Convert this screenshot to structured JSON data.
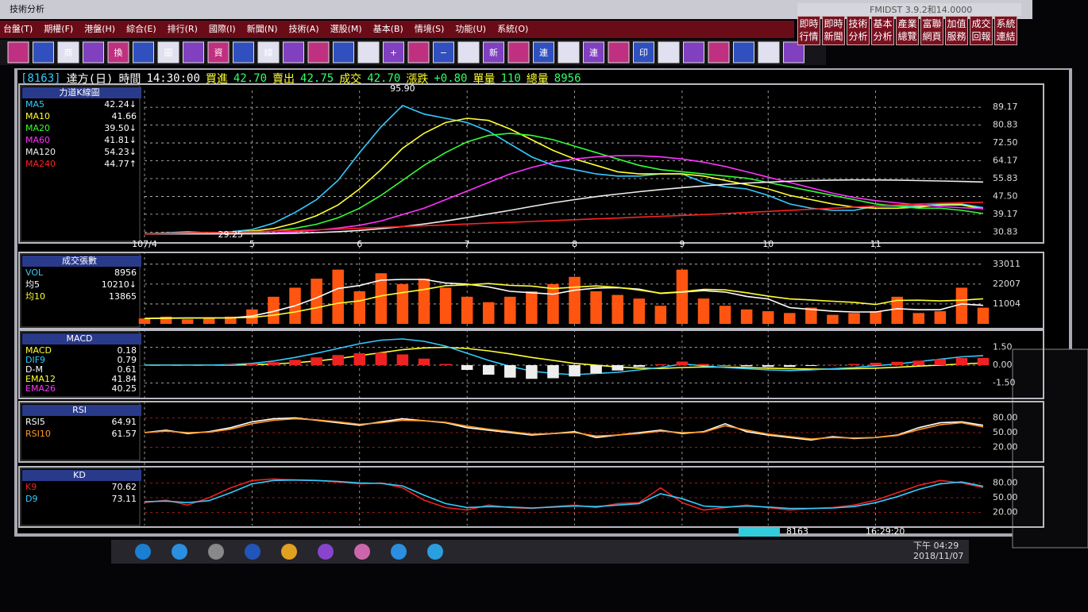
{
  "window": {
    "title": "技術分析",
    "app_title": "FMIDST 3.9.2和14.0000"
  },
  "menu": [
    "台盤(T)",
    "期權(F)",
    "港盤(H)",
    "綜合(E)",
    "排行(R)",
    "國際(I)",
    "新聞(N)",
    "技術(A)",
    "選股(M)",
    "基本(B)",
    "情境(S)",
    "功能(U)",
    "系統(O)"
  ],
  "side_buttons": [
    "即時行情",
    "即時新聞",
    "技術分析",
    "基本分析",
    "產業總覽",
    "富聯網頁",
    "加值服務",
    "成交回報",
    "系統連結"
  ],
  "toolbar": [
    "商",
    "換",
    "圖",
    "資",
    "線",
    "+",
    "−",
    "新",
    "連",
    "連",
    "印"
  ],
  "quote": [
    {
      "text": "[8163]",
      "color": "#33ccff"
    },
    {
      "text": "達方(日)",
      "color": "#ffffff"
    },
    {
      "text": "時間",
      "color": "#ffffff"
    },
    {
      "text": "14:30:00",
      "color": "#ffffff"
    },
    {
      "text": "買進",
      "color": "#ffff33"
    },
    {
      "text": "42.70",
      "color": "#33ff66"
    },
    {
      "text": "賣出",
      "color": "#ffff33"
    },
    {
      "text": "42.75",
      "color": "#33ff66"
    },
    {
      "text": "成交",
      "color": "#ffff33"
    },
    {
      "text": "42.70",
      "color": "#33ff66"
    },
    {
      "text": "漲跌",
      "color": "#ffff33"
    },
    {
      "text": "+0.80",
      "color": "#33ff66"
    },
    {
      "text": "單量",
      "color": "#ffff33"
    },
    {
      "text": "110",
      "color": "#33ff66"
    },
    {
      "text": "總量",
      "color": "#ffff33"
    },
    {
      "text": "8956",
      "color": "#33ff66"
    }
  ],
  "chart_data": [
    {
      "type": "line",
      "title": "力道K線圖",
      "grid": true,
      "grid_color": "#cccccc",
      "categories": [
        "107/4",
        null,
        null,
        null,
        null,
        "5",
        null,
        null,
        null,
        null,
        "6",
        null,
        null,
        null,
        null,
        "7",
        null,
        null,
        null,
        null,
        "8",
        null,
        null,
        null,
        null,
        "9",
        null,
        null,
        null,
        "10",
        null,
        null,
        null,
        null,
        "11",
        null,
        null,
        null,
        null,
        null
      ],
      "ylim": [
        28,
        97
      ],
      "yticks": [
        89.17,
        80.83,
        {
          "value": 72.5,
          "label": "72.50"
        },
        64.17,
        55.83,
        {
          "value": 47.5,
          "label": "47.50"
        },
        39.17,
        30.83
      ],
      "annotations": [
        "95.90",
        "29.25"
      ],
      "series": [
        {
          "name": "MA5",
          "color": "#33ccff",
          "legend_label": "42.24↓",
          "values": [
            30,
            30.5,
            31,
            30.5,
            31,
            32,
            35,
            40,
            46,
            55,
            68,
            80,
            90,
            86,
            84,
            82,
            78,
            72,
            66,
            62,
            60,
            58,
            57,
            57,
            58,
            58,
            54,
            52,
            51,
            48,
            44,
            42,
            41,
            41,
            43,
            43,
            43,
            44,
            44,
            42.24
          ]
        },
        {
          "name": "MA10",
          "color": "#ffff33",
          "legend_label": "41.66",
          "values": [
            30,
            30.2,
            30.5,
            30.6,
            30.8,
            31.3,
            32.5,
            35,
            38.5,
            43.5,
            51,
            60,
            70,
            77,
            82,
            84,
            83,
            79,
            74,
            69,
            65,
            62,
            59,
            58,
            58,
            58,
            57,
            55,
            53,
            51,
            48,
            46,
            44,
            42.5,
            42,
            42,
            42.5,
            43.5,
            43.5,
            41.66
          ]
        },
        {
          "name": "MA20",
          "color": "#33ff33",
          "legend_label": "39.50↓",
          "values": [
            30,
            30,
            30,
            30.1,
            30.3,
            30.6,
            31.3,
            32.6,
            34.5,
            37.5,
            42,
            48,
            55,
            62,
            68,
            73,
            76,
            77,
            76,
            74,
            71,
            68,
            65,
            62,
            60,
            59,
            58,
            57,
            56,
            54,
            52,
            50,
            48,
            46,
            44,
            43,
            42,
            42,
            41,
            39.5
          ]
        },
        {
          "name": "MA60",
          "color": "#ff33ff",
          "legend_label": "41.81↓",
          "values": [
            30,
            30,
            30,
            30,
            30,
            30.2,
            30.5,
            31,
            31.7,
            32.7,
            34,
            36,
            39,
            42,
            46,
            50,
            54,
            58,
            61,
            63.5,
            65,
            66,
            66.5,
            66.5,
            66,
            65,
            63.5,
            61.5,
            59,
            56.5,
            54,
            51.5,
            49,
            47,
            45.5,
            44.5,
            43.5,
            42.8,
            42.2,
            41.81
          ]
        },
        {
          "name": "MA120",
          "color": "#eeeeee",
          "legend_label": "54.23↓",
          "values": [
            30,
            30,
            30,
            30,
            30,
            30,
            30.1,
            30.3,
            30.6,
            31,
            31.6,
            32.4,
            33.4,
            34.6,
            36,
            37.6,
            39.3,
            41,
            42.8,
            44.5,
            46,
            47.4,
            48.6,
            49.7,
            50.7,
            51.6,
            52.4,
            53.1,
            53.7,
            54.2,
            54.6,
            54.9,
            55.1,
            55.2,
            55.2,
            55.1,
            54.9,
            54.7,
            54.5,
            54.23
          ]
        },
        {
          "name": "MA240",
          "color": "#ff2222",
          "legend_label": "44.77↑",
          "values": [
            30,
            30.2,
            30.4,
            30.6,
            30.8,
            31,
            31.3,
            31.6,
            31.9,
            32.2,
            32.6,
            33,
            33.4,
            33.8,
            34.2,
            34.6,
            35,
            35.4,
            35.8,
            36.2,
            36.6,
            37,
            37.4,
            37.8,
            38.2,
            38.6,
            39,
            39.5,
            40,
            40.5,
            41,
            41.5,
            42,
            42.5,
            43,
            43.5,
            44,
            44.3,
            44.6,
            44.77
          ]
        }
      ]
    },
    {
      "type": "bar",
      "title": "成交張數",
      "grid": true,
      "grid_color": "#cccccc",
      "ylim": [
        0,
        36000
      ],
      "yticks": [
        33011,
        22007,
        11004
      ],
      "series": [
        {
          "name": "VOL",
          "type": "bar",
          "color": "#ff5511",
          "legend_color": "#33ccff",
          "legend_label": "8956",
          "values": [
            3000,
            4000,
            2500,
            3000,
            4000,
            8000,
            15000,
            20000,
            25000,
            30000,
            18000,
            28000,
            22000,
            25000,
            20000,
            15000,
            12000,
            15000,
            18000,
            22000,
            26000,
            18000,
            16000,
            14000,
            10000,
            30000,
            14000,
            10000,
            8000,
            7000,
            6000,
            9000,
            5000,
            6000,
            7000,
            15000,
            6000,
            7000,
            20000,
            8956
          ]
        },
        {
          "name": "均5",
          "color": "#ffffff",
          "legend_label": "10210↓",
          "values": [
            3000,
            3200,
            3300,
            3300,
            3300,
            4300,
            6900,
            10000,
            14400,
            19600,
            21200,
            24200,
            24600,
            24600,
            22600,
            22000,
            20400,
            18000,
            17200,
            16400,
            18600,
            19800,
            20000,
            19200,
            16800,
            17600,
            18400,
            17600,
            15200,
            13800,
            9000,
            8000,
            7000,
            6600,
            6600,
            8400,
            7800,
            7800,
            11000,
            10210
          ]
        },
        {
          "name": "均10",
          "color": "#ffff33",
          "legend_label": "13865",
          "values": [
            3000,
            3100,
            3200,
            3250,
            3300,
            3600,
            4800,
            6600,
            8900,
            11400,
            12700,
            15500,
            17300,
            19000,
            21100,
            21600,
            22300,
            21300,
            20900,
            19500,
            20300,
            21000,
            20200,
            18700,
            17000,
            17800,
            19100,
            18800,
            17200,
            15300,
            13800,
            13200,
            12500,
            11900,
            10700,
            13000,
            13100,
            12700,
            13100,
            13865
          ]
        }
      ]
    },
    {
      "type": "bar",
      "title": "MACD",
      "grid": true,
      "grid_color": "#cccccc",
      "ylim": [
        -2.4,
        2.4
      ],
      "yticks": [
        {
          "value": 1.5,
          "label": "1.50"
        },
        {
          "value": 0,
          "label": "0.00"
        },
        {
          "value": -1.5,
          "label": "-1.50"
        }
      ],
      "series": [
        {
          "name": "MACD",
          "color": "#ffff33",
          "legend_label": "0.18",
          "values": [
            0,
            0,
            0,
            0,
            0.01,
            0.04,
            0.1,
            0.2,
            0.35,
            0.55,
            0.8,
            1.05,
            1.3,
            1.45,
            1.5,
            1.4,
            1.2,
            0.95,
            0.65,
            0.4,
            0.15,
            0,
            -0.15,
            -0.25,
            -0.28,
            -0.2,
            -0.15,
            -0.16,
            -0.2,
            -0.25,
            -0.3,
            -0.33,
            -0.33,
            -0.3,
            -0.25,
            -0.18,
            -0.08,
            0,
            0.1,
            0.18
          ]
        },
        {
          "name": "DIF9",
          "color": "#33ccff",
          "legend_label": "0.79",
          "values": [
            0,
            0,
            0,
            0,
            0.05,
            0.15,
            0.35,
            0.65,
            1.0,
            1.4,
            1.8,
            2.1,
            2.2,
            2.0,
            1.6,
            1.0,
            0.4,
            -0.1,
            -0.5,
            -0.7,
            -0.8,
            -0.7,
            -0.6,
            -0.4,
            -0.2,
            0.1,
            -0.05,
            -0.2,
            -0.3,
            -0.4,
            -0.45,
            -0.4,
            -0.3,
            -0.2,
            -0.05,
            0.1,
            0.3,
            0.5,
            0.7,
            0.79
          ]
        },
        {
          "name": "D-M",
          "type": "bar",
          "color": "#ee2222",
          "negative_color": "#eeeeee",
          "legend_color": "#ffffff",
          "legend_label": "0.61",
          "values": [
            0,
            0,
            0,
            0,
            0.04,
            0.11,
            0.25,
            0.45,
            0.65,
            0.85,
            1.0,
            1.05,
            0.9,
            0.55,
            0.1,
            -0.4,
            -0.8,
            -1.05,
            -1.15,
            -1.1,
            -0.95,
            -0.7,
            -0.45,
            -0.15,
            0.08,
            0.3,
            0.1,
            -0.04,
            -0.1,
            -0.15,
            -0.15,
            -0.07,
            0.03,
            0.1,
            0.2,
            0.28,
            0.38,
            0.5,
            0.6,
            0.61
          ]
        }
      ],
      "extra_legend": [
        {
          "name": "EMA12",
          "color": "#ffff33",
          "label": "41.84"
        },
        {
          "name": "EMA26",
          "color": "#ff33ff",
          "label": "40.25"
        }
      ]
    },
    {
      "type": "line",
      "title": "RSI",
      "grid": true,
      "grid_color": "#cc2222",
      "ylim": [
        0,
        100
      ],
      "yticks": [
        {
          "value": 80,
          "label": "80.00"
        },
        {
          "value": 50,
          "label": "50.00"
        },
        {
          "value": 20,
          "label": "20.00"
        }
      ],
      "series": [
        {
          "name": "RSI5",
          "color": "#ffffff",
          "legend_label": "64.91",
          "values": [
            50,
            55,
            48,
            52,
            60,
            72,
            78,
            80,
            75,
            70,
            65,
            72,
            78,
            74,
            70,
            60,
            55,
            50,
            45,
            48,
            52,
            40,
            45,
            50,
            55,
            48,
            52,
            68,
            52,
            45,
            40,
            35,
            42,
            38,
            40,
            45,
            60,
            70,
            72,
            64.91
          ]
        },
        {
          "name": "RSI10",
          "color": "#ff9922",
          "legend_label": "61.57",
          "values": [
            50,
            53,
            50,
            51,
            57,
            68,
            75,
            78,
            76,
            72,
            67,
            70,
            75,
            74,
            71,
            63,
            57,
            52,
            47,
            48,
            50,
            43,
            45,
            48,
            53,
            50,
            51,
            64,
            55,
            47,
            42,
            37,
            40,
            39,
            40,
            44,
            56,
            66,
            70,
            61.57
          ]
        }
      ]
    },
    {
      "type": "line",
      "title": "KD",
      "grid": true,
      "grid_color": "#cc2222",
      "ylim": [
        0,
        100
      ],
      "yticks": [
        {
          "value": 80,
          "label": "80.00"
        },
        {
          "value": 50,
          "label": "50.00"
        },
        {
          "value": 20,
          "label": "20.00"
        }
      ],
      "series": [
        {
          "name": "K9",
          "color": "#ee2222",
          "legend_label": "70.62",
          "values": [
            40,
            45,
            35,
            50,
            70,
            85,
            88,
            86,
            85,
            82,
            78,
            80,
            70,
            45,
            30,
            25,
            35,
            30,
            28,
            32,
            35,
            30,
            38,
            40,
            70,
            40,
            25,
            30,
            35,
            30,
            25,
            28,
            30,
            35,
            45,
            60,
            75,
            85,
            80,
            70.62
          ]
        },
        {
          "name": "D9",
          "color": "#33ccff",
          "legend_label": "73.11",
          "values": [
            42,
            43,
            40,
            44,
            60,
            78,
            85,
            86,
            85,
            83,
            80,
            79,
            74,
            55,
            38,
            30,
            32,
            31,
            29,
            31,
            33,
            32,
            35,
            38,
            58,
            48,
            33,
            31,
            33,
            31,
            28,
            28,
            29,
            32,
            40,
            52,
            67,
            78,
            82,
            73.11
          ]
        }
      ]
    }
  ],
  "status": {
    "code": "8163",
    "time": "16:29:20"
  },
  "taskbar": {
    "time": "下午 04:29",
    "date": "2018/11/07"
  }
}
